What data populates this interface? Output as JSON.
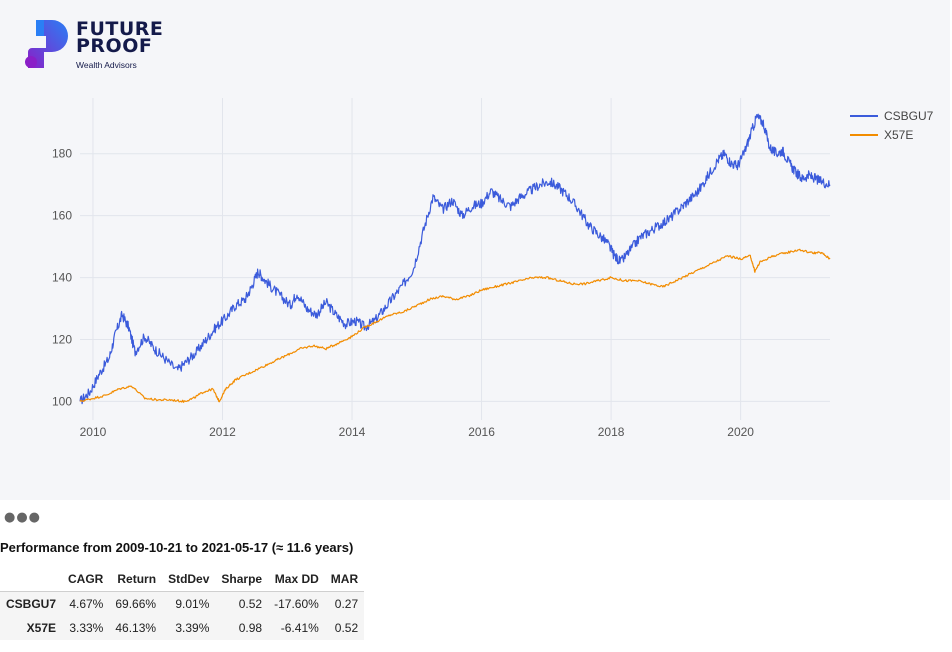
{
  "logo": {
    "line1": "FUTURE",
    "line2": "PROOF",
    "sub": "Wealth Advisors",
    "colors": {
      "navy": "#141a4a",
      "purple": "#8a1fc7",
      "blue": "#2a7ff5"
    }
  },
  "more_icon": "more-horizontal-icon",
  "performance": {
    "title": "Performance from 2009-10-21 to 2021-05-17 (≈ 11.6 years)",
    "columns": [
      "",
      "CAGR",
      "Return",
      "StdDev",
      "Sharpe",
      "Max DD",
      "MAR"
    ],
    "rows": [
      {
        "name": "CSBGU7",
        "cagr": "4.67%",
        "return": "69.66%",
        "stddev": "9.01%",
        "sharpe": "0.52",
        "maxdd": "-17.60%",
        "mar": "0.27"
      },
      {
        "name": "X57E",
        "cagr": "3.33%",
        "return": "46.13%",
        "stddev": "3.39%",
        "sharpe": "0.98",
        "maxdd": "-6.41%",
        "mar": "0.52"
      }
    ]
  },
  "chart_data": {
    "type": "line",
    "title": "",
    "xlabel": "",
    "ylabel": "",
    "x_range": [
      2009.8,
      2021.38
    ],
    "ylim": [
      94,
      198
    ],
    "x_ticks": [
      2010,
      2012,
      2014,
      2016,
      2018,
      2020
    ],
    "y_ticks": [
      100,
      120,
      140,
      160,
      180
    ],
    "grid": true,
    "legend_position": "top-right",
    "series": [
      {
        "name": "CSBGU7",
        "color": "#3b5bdb",
        "points": [
          [
            2009.8,
            100
          ],
          [
            2009.95,
            103
          ],
          [
            2010.1,
            109
          ],
          [
            2010.25,
            114
          ],
          [
            2010.35,
            122
          ],
          [
            2010.45,
            128
          ],
          [
            2010.55,
            124
          ],
          [
            2010.65,
            116
          ],
          [
            2010.8,
            121
          ],
          [
            2010.95,
            117
          ],
          [
            2011.1,
            114
          ],
          [
            2011.3,
            110
          ],
          [
            2011.45,
            113
          ],
          [
            2011.6,
            116
          ],
          [
            2011.75,
            120
          ],
          [
            2011.9,
            124
          ],
          [
            2012.05,
            127
          ],
          [
            2012.2,
            131
          ],
          [
            2012.35,
            133
          ],
          [
            2012.45,
            137
          ],
          [
            2012.55,
            142
          ],
          [
            2012.62,
            140
          ],
          [
            2012.75,
            137
          ],
          [
            2012.9,
            134
          ],
          [
            2013.05,
            131
          ],
          [
            2013.15,
            135
          ],
          [
            2013.3,
            130
          ],
          [
            2013.45,
            128
          ],
          [
            2013.6,
            132
          ],
          [
            2013.75,
            128
          ],
          [
            2013.9,
            125
          ],
          [
            2014.05,
            126
          ],
          [
            2014.2,
            124
          ],
          [
            2014.35,
            126
          ],
          [
            2014.5,
            130
          ],
          [
            2014.65,
            134
          ],
          [
            2014.8,
            138
          ],
          [
            2014.95,
            143
          ],
          [
            2015.1,
            155
          ],
          [
            2015.25,
            166
          ],
          [
            2015.4,
            162
          ],
          [
            2015.55,
            165
          ],
          [
            2015.7,
            160
          ],
          [
            2015.85,
            163
          ],
          [
            2016.0,
            164
          ],
          [
            2016.15,
            168
          ],
          [
            2016.3,
            165
          ],
          [
            2016.45,
            163
          ],
          [
            2016.6,
            166
          ],
          [
            2016.75,
            168
          ],
          [
            2016.9,
            170
          ],
          [
            2017.05,
            171
          ],
          [
            2017.2,
            169
          ],
          [
            2017.35,
            166
          ],
          [
            2017.5,
            162
          ],
          [
            2017.65,
            157
          ],
          [
            2017.8,
            154
          ],
          [
            2017.95,
            151
          ],
          [
            2018.05,
            147
          ],
          [
            2018.15,
            145
          ],
          [
            2018.3,
            149
          ],
          [
            2018.45,
            153
          ],
          [
            2018.6,
            155
          ],
          [
            2018.75,
            157
          ],
          [
            2018.9,
            159
          ],
          [
            2019.05,
            162
          ],
          [
            2019.2,
            165
          ],
          [
            2019.35,
            168
          ],
          [
            2019.5,
            173
          ],
          [
            2019.65,
            178
          ],
          [
            2019.75,
            180
          ],
          [
            2019.85,
            177
          ],
          [
            2019.95,
            176
          ],
          [
            2020.05,
            180
          ],
          [
            2020.15,
            186
          ],
          [
            2020.25,
            192
          ],
          [
            2020.35,
            190
          ],
          [
            2020.45,
            182
          ],
          [
            2020.55,
            180
          ],
          [
            2020.65,
            181
          ],
          [
            2020.75,
            177
          ],
          [
            2020.85,
            174
          ],
          [
            2020.95,
            172
          ],
          [
            2021.05,
            173
          ],
          [
            2021.15,
            172
          ],
          [
            2021.25,
            171
          ],
          [
            2021.38,
            170
          ]
        ]
      },
      {
        "name": "X57E",
        "color": "#f28c00",
        "points": [
          [
            2009.8,
            100
          ],
          [
            2010.0,
            101
          ],
          [
            2010.2,
            102
          ],
          [
            2010.4,
            104
          ],
          [
            2010.6,
            105
          ],
          [
            2010.8,
            101
          ],
          [
            2011.0,
            100.5
          ],
          [
            2011.2,
            100.5
          ],
          [
            2011.4,
            100
          ],
          [
            2011.55,
            101
          ],
          [
            2011.7,
            103
          ],
          [
            2011.85,
            104
          ],
          [
            2011.95,
            100
          ],
          [
            2012.05,
            104
          ],
          [
            2012.2,
            107
          ],
          [
            2012.4,
            109
          ],
          [
            2012.6,
            111
          ],
          [
            2012.8,
            113
          ],
          [
            2013.0,
            115
          ],
          [
            2013.2,
            117
          ],
          [
            2013.4,
            118
          ],
          [
            2013.6,
            117
          ],
          [
            2013.8,
            119
          ],
          [
            2014.0,
            121
          ],
          [
            2014.2,
            124
          ],
          [
            2014.4,
            126
          ],
          [
            2014.6,
            128
          ],
          [
            2014.8,
            129
          ],
          [
            2015.0,
            131
          ],
          [
            2015.2,
            133
          ],
          [
            2015.4,
            134
          ],
          [
            2015.6,
            133
          ],
          [
            2015.8,
            134
          ],
          [
            2016.0,
            136
          ],
          [
            2016.2,
            137
          ],
          [
            2016.4,
            138
          ],
          [
            2016.6,
            139
          ],
          [
            2016.8,
            140
          ],
          [
            2017.0,
            140
          ],
          [
            2017.2,
            139
          ],
          [
            2017.4,
            138
          ],
          [
            2017.6,
            138
          ],
          [
            2017.8,
            139
          ],
          [
            2018.0,
            140
          ],
          [
            2018.2,
            139
          ],
          [
            2018.4,
            139
          ],
          [
            2018.6,
            138
          ],
          [
            2018.8,
            137
          ],
          [
            2019.0,
            139
          ],
          [
            2019.2,
            141
          ],
          [
            2019.4,
            143
          ],
          [
            2019.6,
            145
          ],
          [
            2019.8,
            147
          ],
          [
            2020.0,
            146
          ],
          [
            2020.15,
            147
          ],
          [
            2020.22,
            142
          ],
          [
            2020.3,
            145
          ],
          [
            2020.5,
            147
          ],
          [
            2020.7,
            148
          ],
          [
            2020.9,
            149
          ],
          [
            2021.1,
            148
          ],
          [
            2021.25,
            148
          ],
          [
            2021.38,
            146
          ]
        ]
      }
    ]
  }
}
